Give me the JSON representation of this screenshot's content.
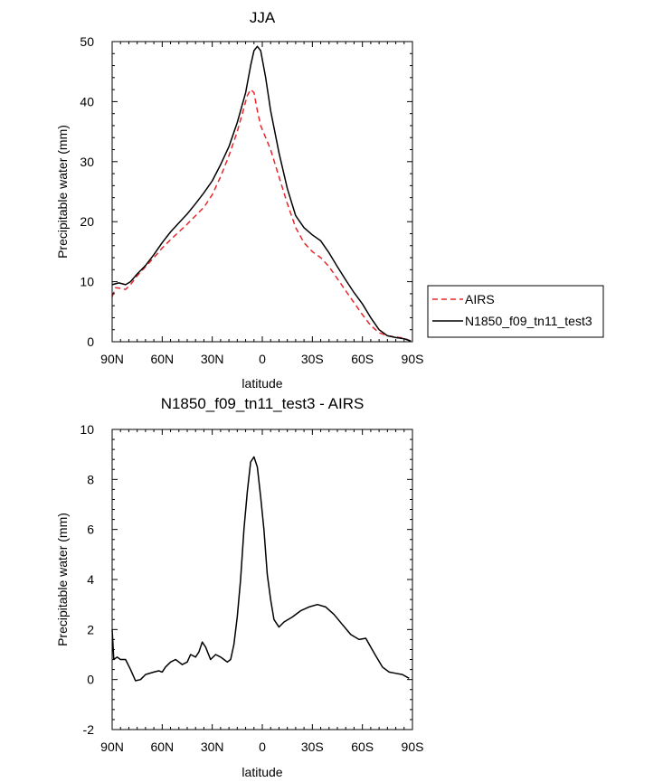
{
  "chart_data": [
    {
      "type": "line",
      "title": "JJA",
      "xlabel": "latitude",
      "ylabel": "Precipitable water (mm)",
      "xlim": [
        90,
        -90
      ],
      "ylim": [
        0,
        50
      ],
      "x_ticks": [
        90,
        60,
        30,
        0,
        -30,
        -60,
        -90
      ],
      "x_tick_labels": [
        "90N",
        "60N",
        "30N",
        "0",
        "30S",
        "60S",
        "90S"
      ],
      "y_ticks": [
        0,
        10,
        20,
        30,
        40,
        50
      ],
      "y_tick_labels": [
        "0",
        "10",
        "20",
        "30",
        "40",
        "50"
      ],
      "legend": {
        "position": "right",
        "entries": [
          "AIRS",
          "N1850_f09_tn11_test3"
        ]
      },
      "series": [
        {
          "name": "AIRS",
          "color": "#e8272b",
          "dash": "dashed",
          "points": [
            [
              90,
              7.5
            ],
            [
              88,
              9
            ],
            [
              85,
              8.9
            ],
            [
              82,
              8.7
            ],
            [
              79,
              9.5
            ],
            [
              75,
              11
            ],
            [
              70,
              12.5
            ],
            [
              65,
              14
            ],
            [
              60,
              15.6
            ],
            [
              55,
              17
            ],
            [
              50,
              18.3
            ],
            [
              45,
              19.6
            ],
            [
              40,
              21
            ],
            [
              35,
              22.4
            ],
            [
              30,
              24.5
            ],
            [
              25,
              27.5
            ],
            [
              20,
              31
            ],
            [
              15,
              35
            ],
            [
              12,
              38
            ],
            [
              9,
              41
            ],
            [
              7,
              42
            ],
            [
              5,
              41.5
            ],
            [
              3,
              38.5
            ],
            [
              1,
              36
            ],
            [
              -2,
              34
            ],
            [
              -5,
              32
            ],
            [
              -10,
              27.5
            ],
            [
              -15,
              23
            ],
            [
              -20,
              19
            ],
            [
              -25,
              16.5
            ],
            [
              -30,
              15
            ],
            [
              -35,
              14
            ],
            [
              -40,
              12.5
            ],
            [
              -45,
              10.5
            ],
            [
              -50,
              8.5
            ],
            [
              -55,
              6.5
            ],
            [
              -60,
              4.5
            ],
            [
              -65,
              2.7
            ],
            [
              -70,
              1.5
            ],
            [
              -75,
              1
            ],
            [
              -80,
              0.8
            ],
            [
              -85,
              0.6
            ],
            [
              -89,
              0.1
            ]
          ]
        },
        {
          "name": "N1850_f09_tn11_test3",
          "color": "#000000",
          "dash": "solid",
          "points": [
            [
              90,
              9.5
            ],
            [
              86,
              9.8
            ],
            [
              82,
              9.5
            ],
            [
              79,
              10
            ],
            [
              75,
              11.3
            ],
            [
              70,
              12.7
            ],
            [
              65,
              14.5
            ],
            [
              60,
              16.5
            ],
            [
              55,
              18.3
            ],
            [
              50,
              19.8
            ],
            [
              45,
              21.3
            ],
            [
              40,
              23
            ],
            [
              35,
              24.8
            ],
            [
              30,
              26.8
            ],
            [
              25,
              29.5
            ],
            [
              20,
              32.5
            ],
            [
              15,
              36.5
            ],
            [
              10,
              41.5
            ],
            [
              7,
              46
            ],
            [
              5,
              48.5
            ],
            [
              3,
              49.2
            ],
            [
              1,
              48.5
            ],
            [
              -2,
              44
            ],
            [
              -5,
              38.5
            ],
            [
              -10,
              31.5
            ],
            [
              -15,
              25.5
            ],
            [
              -20,
              21
            ],
            [
              -25,
              19
            ],
            [
              -30,
              17.8
            ],
            [
              -35,
              16.8
            ],
            [
              -40,
              14.8
            ],
            [
              -45,
              12.5
            ],
            [
              -50,
              10.3
            ],
            [
              -55,
              8.2
            ],
            [
              -60,
              6.3
            ],
            [
              -65,
              4
            ],
            [
              -70,
              2
            ],
            [
              -75,
              1
            ],
            [
              -80,
              0.7
            ],
            [
              -85,
              0.5
            ],
            [
              -89,
              0.1
            ]
          ]
        }
      ]
    },
    {
      "type": "line",
      "title": "N1850_f09_tn11_test3 - AIRS",
      "xlabel": "latitude",
      "ylabel": "Precipitable water (mm)",
      "xlim": [
        90,
        -90
      ],
      "ylim": [
        -2,
        10
      ],
      "x_ticks": [
        90,
        60,
        30,
        0,
        -30,
        -60,
        -90
      ],
      "x_tick_labels": [
        "90N",
        "60N",
        "30N",
        "0",
        "30S",
        "60S",
        "90S"
      ],
      "y_ticks": [
        -2,
        0,
        2,
        4,
        6,
        8,
        10
      ],
      "y_tick_labels": [
        "-2",
        "0",
        "2",
        "4",
        "6",
        "8",
        "10"
      ],
      "series": [
        {
          "name": "N1850_f09_tn11_test3 - AIRS",
          "color": "#000000",
          "dash": "solid",
          "points": [
            [
              90,
              2
            ],
            [
              89,
              0.8
            ],
            [
              87,
              0.9
            ],
            [
              85,
              0.8
            ],
            [
              82,
              0.8
            ],
            [
              79,
              0.4
            ],
            [
              77,
              0.1
            ],
            [
              76,
              -0.05
            ],
            [
              73,
              0
            ],
            [
              70,
              0.2
            ],
            [
              65,
              0.3
            ],
            [
              62,
              0.35
            ],
            [
              60,
              0.3
            ],
            [
              58,
              0.5
            ],
            [
              55,
              0.7
            ],
            [
              52,
              0.8
            ],
            [
              50,
              0.7
            ],
            [
              48,
              0.6
            ],
            [
              45,
              0.7
            ],
            [
              43,
              1
            ],
            [
              40,
              0.9
            ],
            [
              38,
              1.1
            ],
            [
              36,
              1.5
            ],
            [
              34,
              1.3
            ],
            [
              31,
              0.8
            ],
            [
              28,
              1
            ],
            [
              25,
              0.9
            ],
            [
              23,
              0.8
            ],
            [
              21,
              0.7
            ],
            [
              19,
              0.8
            ],
            [
              17,
              1.4
            ],
            [
              15,
              2.5
            ],
            [
              13,
              4
            ],
            [
              11,
              6
            ],
            [
              9,
              7.5
            ],
            [
              7,
              8.7
            ],
            [
              5,
              8.9
            ],
            [
              3,
              8.5
            ],
            [
              1,
              7.3
            ],
            [
              -1,
              6
            ],
            [
              -3,
              4.2
            ],
            [
              -5,
              3.2
            ],
            [
              -7,
              2.4
            ],
            [
              -10,
              2.1
            ],
            [
              -13,
              2.3
            ],
            [
              -18,
              2.5
            ],
            [
              -23,
              2.75
            ],
            [
              -28,
              2.9
            ],
            [
              -33,
              3
            ],
            [
              -38,
              2.9
            ],
            [
              -43,
              2.6
            ],
            [
              -48,
              2.2
            ],
            [
              -53,
              1.8
            ],
            [
              -58,
              1.6
            ],
            [
              -62,
              1.65
            ],
            [
              -65,
              1.3
            ],
            [
              -68,
              0.95
            ],
            [
              -72,
              0.5
            ],
            [
              -76,
              0.3
            ],
            [
              -80,
              0.25
            ],
            [
              -84,
              0.2
            ],
            [
              -88,
              0.05
            ]
          ]
        }
      ]
    }
  ]
}
